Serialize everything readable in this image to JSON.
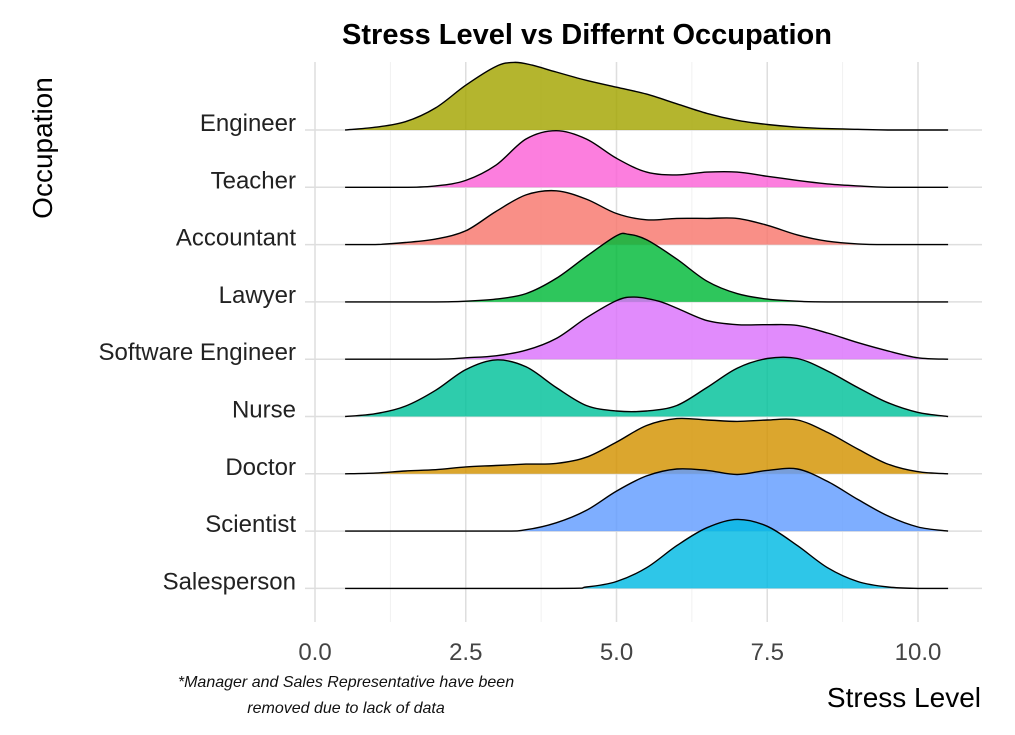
{
  "chart_data": {
    "type": "ridgeline",
    "title": "Stress Level vs Differnt Occupation",
    "xlabel": "Stress Level",
    "ylabel": "Occupation",
    "xlim": [
      0,
      10.8
    ],
    "x_ticks": [
      0,
      2.5,
      5,
      7.5,
      10
    ],
    "x_tick_labels": [
      "0.0",
      "2.5",
      "5.0",
      "7.5",
      "10.0"
    ],
    "grid": true,
    "note": [
      "*Manager and Sales Representative have been",
      "removed due to lack of data"
    ],
    "series": [
      {
        "name": "Engineer",
        "color": "#A3A500",
        "range": [
          0.5,
          10.5
        ],
        "density": [
          [
            0.5,
            0.0
          ],
          [
            1.0,
            0.04
          ],
          [
            1.5,
            0.12
          ],
          [
            2.0,
            0.32
          ],
          [
            2.5,
            0.65
          ],
          [
            3.0,
            0.92
          ],
          [
            3.3,
            0.98
          ],
          [
            3.6,
            0.94
          ],
          [
            4.0,
            0.84
          ],
          [
            4.5,
            0.72
          ],
          [
            5.0,
            0.62
          ],
          [
            5.5,
            0.52
          ],
          [
            6.0,
            0.38
          ],
          [
            6.5,
            0.24
          ],
          [
            7.0,
            0.14
          ],
          [
            7.5,
            0.08
          ],
          [
            8.0,
            0.04
          ],
          [
            8.5,
            0.02
          ],
          [
            9.0,
            0.01
          ],
          [
            9.5,
            0.0
          ],
          [
            10.5,
            0.0
          ]
        ]
      },
      {
        "name": "Teacher",
        "color": "#FB61D7",
        "range": [
          0.5,
          10.5
        ],
        "density": [
          [
            0.5,
            0.0
          ],
          [
            1.5,
            0.0
          ],
          [
            2.0,
            0.02
          ],
          [
            2.5,
            0.1
          ],
          [
            3.0,
            0.32
          ],
          [
            3.5,
            0.7
          ],
          [
            4.0,
            0.82
          ],
          [
            4.5,
            0.7
          ],
          [
            5.0,
            0.42
          ],
          [
            5.5,
            0.22
          ],
          [
            6.0,
            0.18
          ],
          [
            6.5,
            0.22
          ],
          [
            7.0,
            0.22
          ],
          [
            7.5,
            0.16
          ],
          [
            8.0,
            0.1
          ],
          [
            8.5,
            0.05
          ],
          [
            9.0,
            0.02
          ],
          [
            9.5,
            0.0
          ],
          [
            10.5,
            0.0
          ]
        ]
      },
      {
        "name": "Accountant",
        "color": "#F8766D",
        "range": [
          0.5,
          10.5
        ],
        "density": [
          [
            0.5,
            0.0
          ],
          [
            1.0,
            0.0
          ],
          [
            1.5,
            0.03
          ],
          [
            2.0,
            0.08
          ],
          [
            2.5,
            0.2
          ],
          [
            3.0,
            0.48
          ],
          [
            3.5,
            0.72
          ],
          [
            4.0,
            0.78
          ],
          [
            4.5,
            0.66
          ],
          [
            5.0,
            0.45
          ],
          [
            5.5,
            0.36
          ],
          [
            6.0,
            0.38
          ],
          [
            6.5,
            0.38
          ],
          [
            7.0,
            0.38
          ],
          [
            7.5,
            0.28
          ],
          [
            8.0,
            0.14
          ],
          [
            8.5,
            0.05
          ],
          [
            9.0,
            0.01
          ],
          [
            9.5,
            0.0
          ],
          [
            10.5,
            0.0
          ]
        ]
      },
      {
        "name": "Lawyer",
        "color": "#00BA38",
        "range": [
          0.5,
          10.5
        ],
        "density": [
          [
            0.5,
            0.0
          ],
          [
            2.0,
            0.0
          ],
          [
            2.5,
            0.01
          ],
          [
            3.0,
            0.04
          ],
          [
            3.5,
            0.12
          ],
          [
            4.0,
            0.34
          ],
          [
            4.5,
            0.66
          ],
          [
            5.0,
            0.96
          ],
          [
            5.2,
            0.98
          ],
          [
            5.5,
            0.9
          ],
          [
            6.0,
            0.62
          ],
          [
            6.5,
            0.3
          ],
          [
            7.0,
            0.12
          ],
          [
            7.5,
            0.04
          ],
          [
            8.0,
            0.01
          ],
          [
            8.5,
            0.0
          ],
          [
            10.5,
            0.0
          ]
        ]
      },
      {
        "name": "Software Engineer",
        "color": "#DB72FB",
        "range": [
          0.5,
          10.5
        ],
        "density": [
          [
            0.5,
            0.0
          ],
          [
            2.0,
            0.0
          ],
          [
            2.5,
            0.02
          ],
          [
            3.0,
            0.05
          ],
          [
            3.5,
            0.13
          ],
          [
            4.0,
            0.3
          ],
          [
            4.5,
            0.6
          ],
          [
            5.0,
            0.85
          ],
          [
            5.3,
            0.9
          ],
          [
            5.7,
            0.84
          ],
          [
            6.0,
            0.74
          ],
          [
            6.5,
            0.56
          ],
          [
            7.0,
            0.5
          ],
          [
            7.5,
            0.5
          ],
          [
            8.0,
            0.49
          ],
          [
            8.5,
            0.38
          ],
          [
            9.0,
            0.24
          ],
          [
            9.5,
            0.12
          ],
          [
            10.0,
            0.02
          ],
          [
            10.5,
            0.0
          ]
        ]
      },
      {
        "name": "Nurse",
        "color": "#00C19A",
        "range": [
          0.5,
          10.5
        ],
        "density": [
          [
            0.5,
            0.0
          ],
          [
            1.0,
            0.04
          ],
          [
            1.5,
            0.15
          ],
          [
            2.0,
            0.38
          ],
          [
            2.5,
            0.68
          ],
          [
            3.0,
            0.82
          ],
          [
            3.5,
            0.72
          ],
          [
            4.0,
            0.42
          ],
          [
            4.5,
            0.16
          ],
          [
            5.0,
            0.08
          ],
          [
            5.5,
            0.08
          ],
          [
            6.0,
            0.16
          ],
          [
            6.5,
            0.42
          ],
          [
            7.0,
            0.7
          ],
          [
            7.5,
            0.84
          ],
          [
            8.0,
            0.84
          ],
          [
            8.5,
            0.66
          ],
          [
            9.0,
            0.42
          ],
          [
            9.5,
            0.2
          ],
          [
            10.0,
            0.06
          ],
          [
            10.5,
            0.0
          ]
        ]
      },
      {
        "name": "Doctor",
        "color": "#D39200",
        "range": [
          0.5,
          10.5
        ],
        "density": [
          [
            0.5,
            0.0
          ],
          [
            1.0,
            0.01
          ],
          [
            1.5,
            0.04
          ],
          [
            2.0,
            0.06
          ],
          [
            2.5,
            0.1
          ],
          [
            3.0,
            0.12
          ],
          [
            3.5,
            0.14
          ],
          [
            4.0,
            0.15
          ],
          [
            4.5,
            0.24
          ],
          [
            5.0,
            0.46
          ],
          [
            5.5,
            0.7
          ],
          [
            6.0,
            0.8
          ],
          [
            6.5,
            0.78
          ],
          [
            7.0,
            0.76
          ],
          [
            7.5,
            0.78
          ],
          [
            8.0,
            0.78
          ],
          [
            8.5,
            0.6
          ],
          [
            9.0,
            0.36
          ],
          [
            9.5,
            0.14
          ],
          [
            10.0,
            0.03
          ],
          [
            10.5,
            0.0
          ]
        ]
      },
      {
        "name": "Scientist",
        "color": "#619CFF",
        "range": [
          0.5,
          10.5
        ],
        "density": [
          [
            0.5,
            0.0
          ],
          [
            3.0,
            0.0
          ],
          [
            3.5,
            0.02
          ],
          [
            4.0,
            0.12
          ],
          [
            4.5,
            0.3
          ],
          [
            5.0,
            0.58
          ],
          [
            5.5,
            0.8
          ],
          [
            6.0,
            0.9
          ],
          [
            6.5,
            0.88
          ],
          [
            7.0,
            0.82
          ],
          [
            7.5,
            0.88
          ],
          [
            8.0,
            0.9
          ],
          [
            8.5,
            0.72
          ],
          [
            9.0,
            0.46
          ],
          [
            9.5,
            0.22
          ],
          [
            10.0,
            0.06
          ],
          [
            10.5,
            0.0
          ]
        ]
      },
      {
        "name": "Salesperson",
        "color": "#00B9E3",
        "range": [
          0.5,
          10.5
        ],
        "density": [
          [
            0.5,
            0.0
          ],
          [
            4.0,
            0.0
          ],
          [
            4.5,
            0.02
          ],
          [
            5.0,
            0.1
          ],
          [
            5.5,
            0.3
          ],
          [
            6.0,
            0.62
          ],
          [
            6.5,
            0.88
          ],
          [
            7.0,
            1.0
          ],
          [
            7.5,
            0.9
          ],
          [
            8.0,
            0.62
          ],
          [
            8.5,
            0.3
          ],
          [
            9.0,
            0.1
          ],
          [
            9.5,
            0.02
          ],
          [
            10.0,
            0.0
          ],
          [
            10.5,
            0.0
          ]
        ]
      }
    ]
  }
}
